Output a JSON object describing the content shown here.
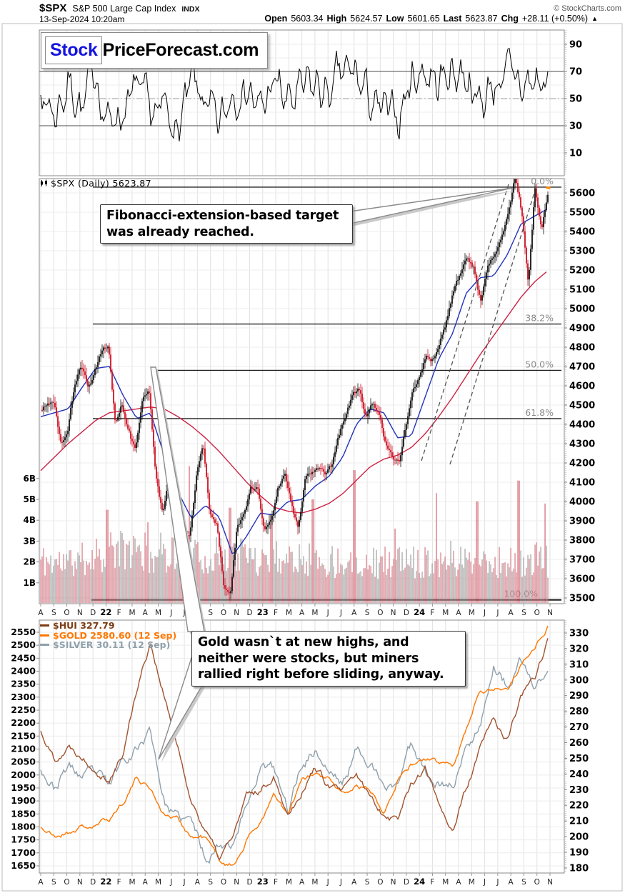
{
  "header": {
    "symbol": "$SPX",
    "name": "S&P 500 Large Cap Index",
    "exchange": "INDX",
    "datetime": "13-Sep-2024 10:20am",
    "copyright": "© StockCharts.com",
    "quote": {
      "open_label": "Open",
      "open": "5603.34",
      "high_label": "High",
      "high": "5624.57",
      "low_label": "Low",
      "low": "5601.65",
      "last_label": "Last",
      "last": "5623.87",
      "chg_label": "Chg",
      "chg": "+28.11 (+0.50%)",
      "arrow": "▲"
    }
  },
  "logo": {
    "part1": "Stock",
    "part2": "PriceForecast.com"
  },
  "main_panel": {
    "label": "$SPX (Daily) 5623.87"
  },
  "legend": {
    "items": [
      {
        "label": "$HUI 327.79",
        "color": "#7d3c12"
      },
      {
        "label": "$GOLD 2580.60 (12 Sep)",
        "color": "#ff7700"
      },
      {
        "label": "$SILVER 30.11 (12 Sep)",
        "color": "#8fa0ab"
      }
    ]
  },
  "annotations": {
    "fib_note": "Fibonacci-extension-based target\nwas already reached.",
    "miners_note": "Gold wasn`t at new highs, and\nneither were stocks, but miners\nrallied right before sliding, anyway."
  },
  "months": [
    "A",
    "S",
    "O",
    "N",
    "D",
    "22",
    "F",
    "M",
    "A",
    "M",
    "J",
    "J",
    "A",
    "S",
    "O",
    "N",
    "D",
    "23",
    "F",
    "M",
    "A",
    "M",
    "J",
    "J",
    "A",
    "S",
    "O",
    "N",
    "D",
    "24",
    "F",
    "M",
    "A",
    "M",
    "J",
    "J",
    "A",
    "S",
    "O",
    "N"
  ],
  "colors": {
    "candle_up": "#111111",
    "candle_down": "#cc1122",
    "ma50": "#2233bb",
    "ma200": "#cc2244",
    "volume_red": "#d4playing7a85",
    "volume_gray": "#9e9e9e",
    "grid": "#e2e2e2",
    "border": "#888888",
    "fib_label": "#8a8a8a"
  },
  "chart_data": [
    {
      "panel": "indicator",
      "type": "line",
      "name": "oscillator",
      "ylim": [
        0,
        100
      ],
      "y_ticks": [
        90,
        70,
        50,
        30,
        10
      ],
      "reference_lines": {
        "overbought": 70,
        "midline": 50,
        "oversold": 30
      },
      "series": [
        {
          "name": "oscillator",
          "color": "#000000",
          "keypoint_start": "Aug-2021",
          "keypoint_interval": "monthly",
          "approx_monthly_values": [
            55,
            38,
            62,
            45,
            65,
            32,
            42,
            58,
            35,
            40,
            28,
            60,
            45,
            26,
            55,
            62,
            38,
            63,
            45,
            55,
            58,
            52,
            68,
            65,
            48,
            38,
            35,
            65,
            72,
            62,
            70,
            70,
            45,
            62,
            68,
            58,
            62,
            60
          ]
        }
      ]
    },
    {
      "panel": "price",
      "type": "candlestick",
      "title": "$SPX (Daily) 5623.87",
      "ylim": [
        3450,
        5680
      ],
      "y_ticks": [
        5600,
        5500,
        5400,
        5300,
        5200,
        5100,
        5000,
        4900,
        4800,
        4700,
        4600,
        4500,
        4400,
        4300,
        4200,
        4100,
        4000,
        3900,
        3800,
        3700,
        3600,
        3500
      ],
      "series": [
        {
          "name": "SPX close",
          "color_up": "#111111",
          "color_down": "#cc1122",
          "keypoint_start": "Aug-2021",
          "keypoint_interval": "half-monthly",
          "approx_values": [
            4470,
            4520,
            4520,
            4310,
            4360,
            4600,
            4700,
            4570,
            4670,
            4780,
            4800,
            4410,
            4500,
            4370,
            4250,
            4540,
            4580,
            4130,
            3930,
            4130,
            3750,
            3790,
            3820,
            4130,
            4300,
            3950,
            3900,
            3590,
            3500,
            3870,
            3950,
            4080,
            4070,
            3840,
            3900,
            4070,
            4150,
            3970,
            3860,
            4100,
            4140,
            4170,
            4120,
            4180,
            4340,
            4450,
            4540,
            4590,
            4440,
            4510,
            4450,
            4290,
            4230,
            4190,
            4400,
            4560,
            4650,
            4770,
            4750,
            4850,
            4950,
            5100,
            5180,
            5250,
            5200,
            5030,
            5220,
            5280,
            5350,
            5460,
            5670,
            5500,
            5150,
            5648,
            5410,
            5624
          ]
        },
        {
          "name": "MA50",
          "color": "#2233bb",
          "keypoint_interval": "monthly",
          "approx_monthly_values": [
            4440,
            4460,
            4480,
            4590,
            4690,
            4700,
            4550,
            4430,
            4460,
            4240,
            4050,
            3910,
            3980,
            3920,
            3720,
            3820,
            3940,
            3930,
            4000,
            4010,
            4080,
            4130,
            4230,
            4400,
            4480,
            4460,
            4330,
            4340,
            4540,
            4740,
            4870,
            5080,
            5160,
            5170,
            5280,
            5440,
            5480,
            5520
          ]
        },
        {
          "name": "MA200",
          "color": "#cc2244",
          "keypoint_interval": "monthly",
          "approx_monthly_values": [
            4160,
            4230,
            4300,
            4360,
            4420,
            4460,
            4470,
            4480,
            4490,
            4480,
            4440,
            4390,
            4330,
            4260,
            4180,
            4100,
            4030,
            3970,
            3950,
            3940,
            3960,
            3990,
            4040,
            4110,
            4180,
            4220,
            4240,
            4280,
            4350,
            4440,
            4540,
            4650,
            4760,
            4860,
            4960,
            5060,
            5140,
            5200
          ]
        }
      ],
      "volume": {
        "y_tick_labels": [
          "6B",
          "5B",
          "4B",
          "3B",
          "2B",
          "1B"
        ],
        "y_tick_values": [
          6,
          5,
          4,
          3,
          2,
          1
        ],
        "avg_monthly_billions": [
          2,
          1.9,
          1.9,
          2,
          2.3,
          2.5,
          2.4,
          2.5,
          2.2,
          2.4,
          2.4,
          2.1,
          2.1,
          2.2,
          2.3,
          2.2,
          2.1,
          2.2,
          2.1,
          2.3,
          1.9,
          1.9,
          2,
          1.9,
          1.9,
          1.9,
          1.9,
          1.9,
          2,
          2,
          2.1,
          2,
          1.9,
          1.9,
          1.9,
          1.9,
          2,
          2
        ],
        "spikes": [
          {
            "month_index": 4,
            "billions": 4.5
          },
          {
            "month_index": 7,
            "billions": 3.9
          },
          {
            "month_index": 10,
            "billions": 6.6
          },
          {
            "month_index": 13,
            "billions": 4.6
          },
          {
            "month_index": 16,
            "billions": 4.3
          },
          {
            "month_index": 19,
            "billions": 5.0
          },
          {
            "month_index": 22,
            "billions": 6.4
          },
          {
            "month_index": 25,
            "billions": 3.6
          },
          {
            "month_index": 28,
            "billions": 5.3
          },
          {
            "month_index": 31,
            "billions": 4.9
          },
          {
            "month_index": 34,
            "billions": 5.9
          },
          {
            "month_index": 35.9,
            "billions": 4.8
          }
        ]
      },
      "fibonacci_levels": [
        {
          "label": "0.0%",
          "approx_price": 5630
        },
        {
          "label": "38.2%",
          "approx_price": 4920
        },
        {
          "label": "50.0%",
          "approx_price": 4680
        },
        {
          "label": "61.8%",
          "approx_price": 4430
        },
        {
          "label": "100.0%",
          "approx_price": 3490
        }
      ]
    },
    {
      "panel": "comparison",
      "type": "line",
      "left_axis": {
        "series": "$GOLD",
        "ticks": [
          2550,
          2500,
          2450,
          2400,
          2350,
          2300,
          2250,
          2200,
          2150,
          2100,
          2050,
          2000,
          1950,
          1900,
          1850,
          1800,
          1750,
          1700,
          1650
        ]
      },
      "right_axis": {
        "series": "$HUI",
        "ticks": [
          330,
          320,
          310,
          300,
          290,
          280,
          270,
          260,
          250,
          240,
          230,
          220,
          210,
          200,
          190,
          180
        ]
      },
      "series": [
        {
          "name": "$HUI",
          "last": 327.79,
          "color": "#a0522d",
          "axis": "right",
          "keypoint_interval": "monthly",
          "approx_monthly_values": [
            267,
            250,
            258,
            252,
            245,
            238,
            253,
            295,
            325,
            290,
            255,
            222,
            205,
            185,
            200,
            225,
            229,
            240,
            215,
            230,
            245,
            232,
            228,
            238,
            225,
            215,
            212,
            235,
            243,
            222,
            205,
            230,
            255,
            275,
            260,
            290,
            300,
            328
          ]
        },
        {
          "name": "$GOLD",
          "last": 2580.6,
          "color": "#ff7700",
          "axis": "left",
          "keypoint_interval": "monthly",
          "approx_monthly_values": [
            1800,
            1760,
            1780,
            1800,
            1800,
            1830,
            1900,
            1990,
            1950,
            1850,
            1830,
            1760,
            1760,
            1670,
            1650,
            1750,
            1820,
            1920,
            1840,
            1970,
            2000,
            1980,
            1920,
            1960,
            1940,
            1870,
            1990,
            2040,
            2060,
            2040,
            2040,
            2180,
            2330,
            2340,
            2330,
            2430,
            2500,
            2580
          ]
        },
        {
          "name": "$SILVER",
          "last": 30.11,
          "color": "#8fa0ab",
          "axis": "hidden",
          "value_range_mapped_to_panel": [
            17.5,
            32.5
          ],
          "keypoint_interval": "monthly",
          "approx_monthly_values": [
            23.9,
            22.5,
            23.9,
            23.2,
            23.3,
            22.5,
            24.4,
            25.2,
            26.2,
            21.7,
            20.4,
            20.3,
            18,
            19,
            19.2,
            21.4,
            24,
            23.6,
            20.9,
            24.1,
            25,
            23.6,
            22.8,
            24.9,
            24.4,
            22.2,
            22.9,
            25.3,
            23.8,
            22.9,
            22.7,
            25,
            26.8,
            30.4,
            29,
            30.5,
            28.9,
            30.1
          ]
        }
      ]
    }
  ]
}
